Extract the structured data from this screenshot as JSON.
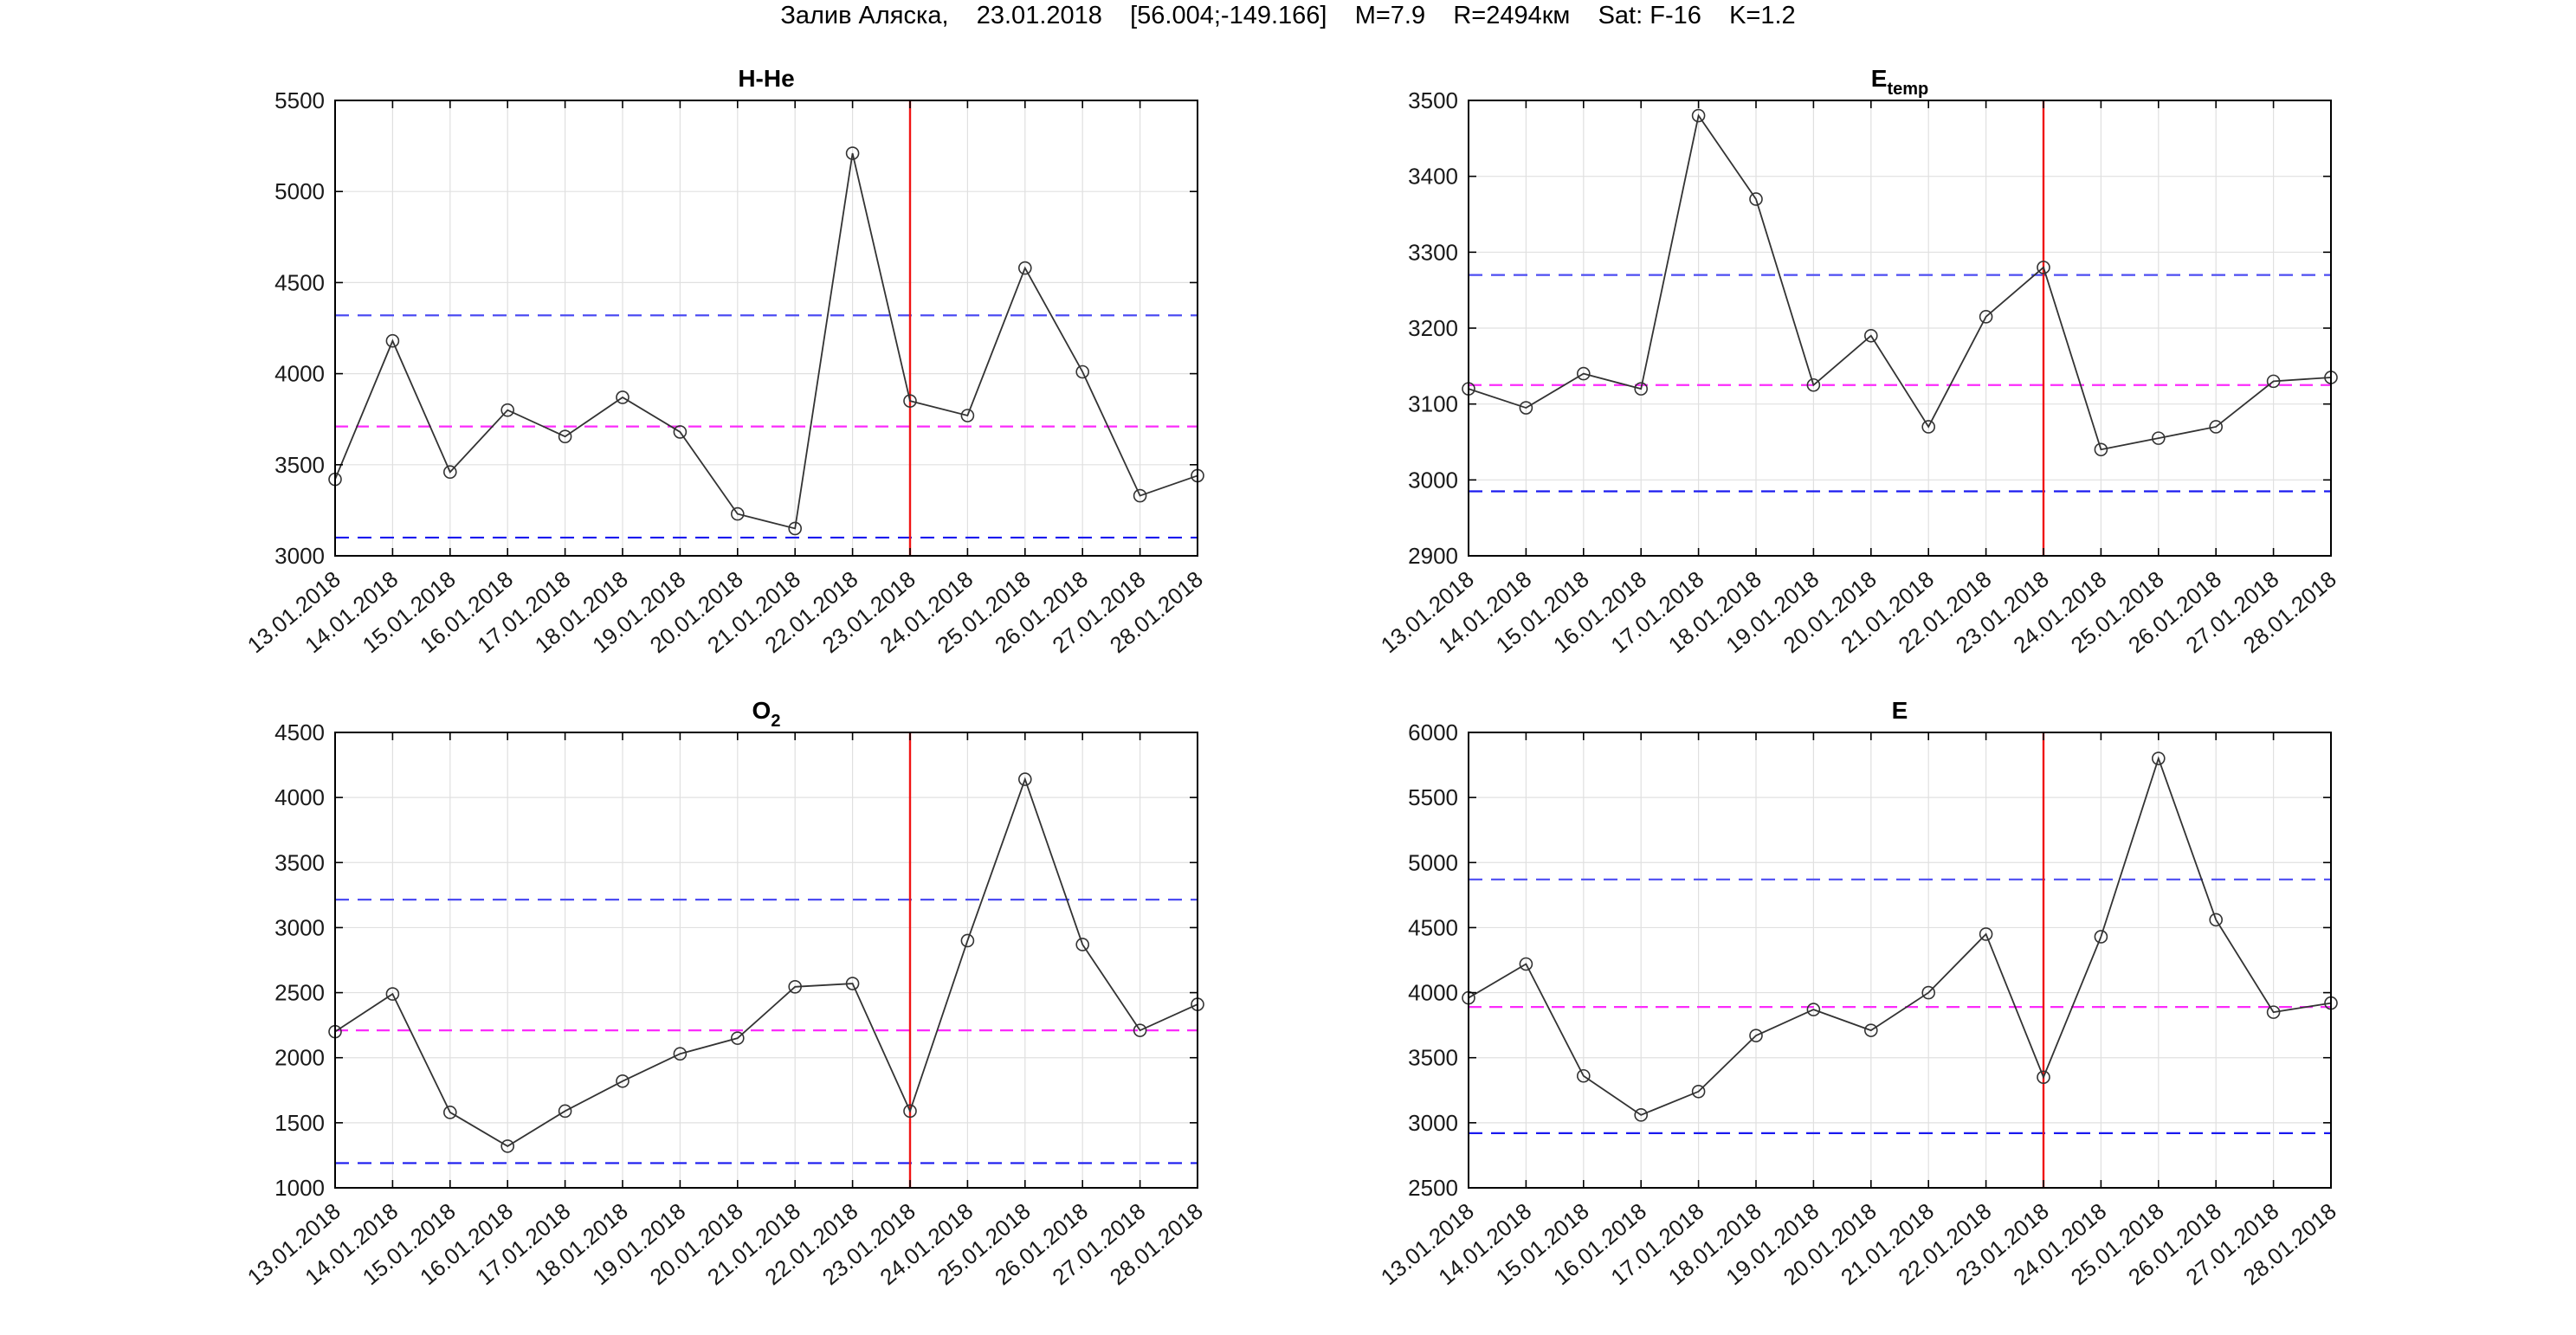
{
  "figure_title": "Залив Аляска,    23.01.2018    [56.004;-149.166]    М=7.9    R=2494км    Sat: F-16    K=1.2",
  "dates": [
    "13.01.2018",
    "14.01.2018",
    "15.01.2018",
    "16.01.2018",
    "17.01.2018",
    "18.01.2018",
    "19.01.2018",
    "20.01.2018",
    "21.01.2018",
    "22.01.2018",
    "23.01.2018",
    "24.01.2018",
    "25.01.2018",
    "26.01.2018",
    "27.01.2018",
    "28.01.2018"
  ],
  "event_date": "23.01.2018",
  "colors": {
    "line": "#333333",
    "marker": "#333333",
    "upper_band": "#4d4df2",
    "lower_band": "#1a1aef",
    "mean_line": "#fb2bfb",
    "event_line": "#f01414",
    "grid": "#e0e0e0",
    "axis": "#000000",
    "text": "#1a1a1a"
  },
  "chart_data": [
    {
      "key": "h-he",
      "type": "line",
      "title_main": "H-He",
      "title_sub": "",
      "categories": [
        "13.01.2018",
        "14.01.2018",
        "15.01.2018",
        "16.01.2018",
        "17.01.2018",
        "18.01.2018",
        "19.01.2018",
        "20.01.2018",
        "21.01.2018",
        "22.01.2018",
        "23.01.2018",
        "24.01.2018",
        "25.01.2018",
        "26.01.2018",
        "27.01.2018",
        "28.01.2018"
      ],
      "values": [
        3420,
        4180,
        3460,
        3800,
        3655,
        3870,
        3680,
        3230,
        3150,
        5210,
        3850,
        3770,
        4580,
        4010,
        3330,
        3440
      ],
      "ylim": [
        3000,
        5500
      ],
      "ytick_step": 500,
      "yticks": [
        3000,
        3500,
        4000,
        4500,
        5000,
        5500
      ],
      "upper_bound": 4320,
      "mean": 3710,
      "lower_bound": 3100,
      "event_x": "23.01.2018",
      "grid": "on",
      "legend": "none"
    },
    {
      "key": "e-temp",
      "type": "line",
      "title_main": "E",
      "title_sub": "temp",
      "categories": [
        "13.01.2018",
        "14.01.2018",
        "15.01.2018",
        "16.01.2018",
        "17.01.2018",
        "18.01.2018",
        "19.01.2018",
        "20.01.2018",
        "21.01.2018",
        "22.01.2018",
        "23.01.2018",
        "24.01.2018",
        "25.01.2018",
        "26.01.2018",
        "27.01.2018",
        "28.01.2018"
      ],
      "values": [
        3120,
        3095,
        3140,
        3120,
        3480,
        3370,
        3125,
        3190,
        3070,
        3215,
        3280,
        3040,
        3055,
        3070,
        3130,
        3135
      ],
      "ylim": [
        2900,
        3500
      ],
      "ytick_step": 100,
      "yticks": [
        2900,
        3000,
        3100,
        3200,
        3300,
        3400,
        3500
      ],
      "upper_bound": 3270,
      "mean": 3125,
      "lower_bound": 2985,
      "event_x": "23.01.2018",
      "grid": "on",
      "legend": "none"
    },
    {
      "key": "o2",
      "type": "line",
      "title_main": "O",
      "title_sub": "2",
      "categories": [
        "13.01.2018",
        "14.01.2018",
        "15.01.2018",
        "16.01.2018",
        "17.01.2018",
        "18.01.2018",
        "19.01.2018",
        "20.01.2018",
        "21.01.2018",
        "22.01.2018",
        "23.01.2018",
        "24.01.2018",
        "25.01.2018",
        "26.01.2018",
        "27.01.2018",
        "28.01.2018"
      ],
      "values": [
        2200,
        2490,
        1580,
        1320,
        1590,
        1820,
        2030,
        2150,
        2545,
        2570,
        1590,
        2900,
        4140,
        2870,
        2210,
        2410
      ],
      "ylim": [
        1000,
        4500
      ],
      "ytick_step": 500,
      "yticks": [
        1000,
        1500,
        2000,
        2500,
        3000,
        3500,
        4000,
        4500
      ],
      "upper_bound": 3215,
      "mean": 2210,
      "lower_bound": 1190,
      "event_x": "23.01.2018",
      "grid": "on",
      "legend": "none"
    },
    {
      "key": "e",
      "type": "line",
      "title_main": "E",
      "title_sub": "",
      "categories": [
        "13.01.2018",
        "14.01.2018",
        "15.01.2018",
        "16.01.2018",
        "17.01.2018",
        "18.01.2018",
        "19.01.2018",
        "20.01.2018",
        "21.01.2018",
        "22.01.2018",
        "23.01.2018",
        "24.01.2018",
        "25.01.2018",
        "26.01.2018",
        "27.01.2018",
        "28.01.2018"
      ],
      "values": [
        3960,
        4220,
        3360,
        3060,
        3240,
        3670,
        3870,
        3710,
        4000,
        4450,
        3350,
        4430,
        5800,
        4560,
        3850,
        3920
      ],
      "ylim": [
        2500,
        6000
      ],
      "ytick_step": 500,
      "yticks": [
        2500,
        3000,
        3500,
        4000,
        4500,
        5000,
        5500,
        6000
      ],
      "upper_bound": 4870,
      "mean": 3890,
      "lower_bound": 2920,
      "event_x": "23.01.2018",
      "grid": "on",
      "legend": "none"
    }
  ]
}
